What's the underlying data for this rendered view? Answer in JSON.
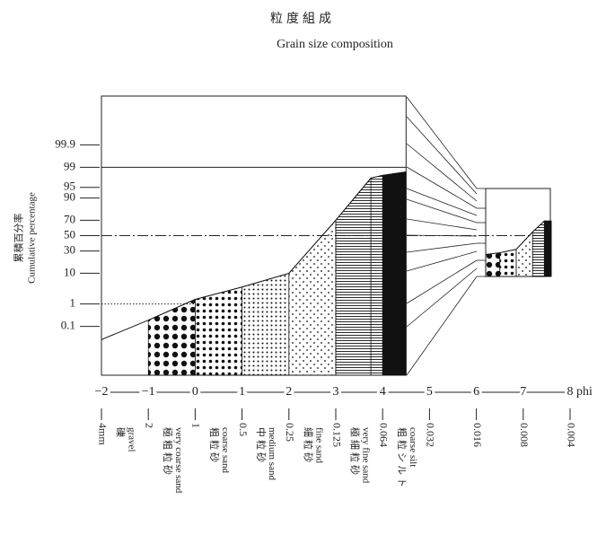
{
  "chart_data": {
    "type": "area",
    "title": "粒度組成",
    "subtitle": "Grain size composition",
    "ylabel_ja": "累積百分率",
    "ylabel": "Cumulative percentage",
    "xlabel": "phi",
    "yscale": "probability",
    "xlim": [
      -2,
      8
    ],
    "ylim": [
      0.0001,
      99.9999
    ],
    "xticks": [
      {
        "value": -2,
        "label": "−2"
      },
      {
        "value": -1,
        "label": "−1"
      },
      0,
      1,
      2,
      3,
      4,
      5,
      6,
      7,
      8
    ],
    "yticks": [
      0.1,
      1,
      10,
      30,
      50,
      70,
      90,
      95,
      99,
      99.9
    ],
    "mm_labels": [
      "4mm",
      "2",
      "1",
      "0.5",
      "0.25",
      "0.125",
      "0.064",
      "0.032",
      "0.016",
      "0.008",
      "0.004"
    ],
    "classes": [
      {
        "ja": "礫",
        "en": "gravel"
      },
      {
        "ja": "極粗粒砂",
        "en": "very coarse sand"
      },
      {
        "ja": "粗粒砂",
        "en": "coarse sand"
      },
      {
        "ja": "中粒砂",
        "en": "medium sand"
      },
      {
        "ja": "細粒砂",
        "en": "fine sand"
      },
      {
        "ja": "極細粒砂",
        "en": "very fine sand"
      },
      {
        "ja": "粗粒シルト",
        "en": "coarse silt"
      }
    ],
    "series": [
      {
        "x": [
          -2,
          -1,
          0,
          1,
          2,
          3,
          3.75,
          4,
          4.5
        ],
        "values": [
          0.02,
          0.2,
          1.5,
          4,
          10,
          70,
          97.5,
          98,
          98.5
        ],
        "fills": [
          null,
          "large-dots",
          "dots",
          "small-dots",
          "fine-dots",
          "lines",
          "lines",
          "solid"
        ],
        "color": "#111111"
      },
      {
        "x": [
          6.2,
          6.5,
          6.85,
          7.2,
          7.45,
          7.6
        ],
        "values": [
          26,
          28,
          32,
          55,
          69,
          69
        ],
        "fills": [
          "large-dots",
          "dots",
          "fine-dots",
          "lines",
          "solid"
        ],
        "color": "#111111"
      }
    ]
  }
}
